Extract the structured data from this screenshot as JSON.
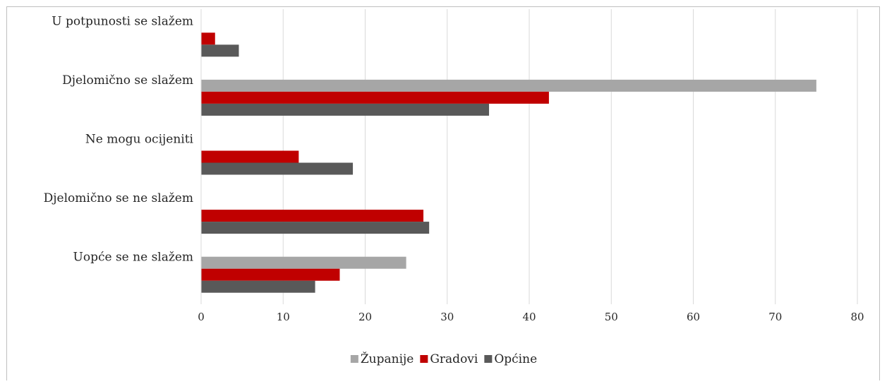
{
  "chart_data": {
    "type": "bar",
    "orientation": "horizontal",
    "categories": [
      "U potpunosti se slažem",
      "Djelomično se slažem",
      "Ne mogu ocijeniti",
      "Djelomično se ne slažem",
      "Uopće se ne slažem"
    ],
    "series": [
      {
        "name": "Županije",
        "color": "#a6a6a6",
        "values": [
          0,
          75,
          0,
          0,
          25
        ]
      },
      {
        "name": "Gradovi",
        "color": "#c00000",
        "values": [
          1.7,
          42.4,
          11.9,
          27.1,
          16.9
        ]
      },
      {
        "name": "Općine",
        "color": "#595959",
        "values": [
          4.6,
          35.1,
          18.5,
          27.8,
          13.9
        ]
      }
    ],
    "xlim": [
      0,
      80
    ],
    "xticks": [
      "0",
      "10",
      "20",
      "30",
      "40",
      "50",
      "60",
      "70",
      "80"
    ],
    "grid": "vertical",
    "legend": "bottom",
    "title": "",
    "xlabel": "",
    "ylabel": ""
  }
}
